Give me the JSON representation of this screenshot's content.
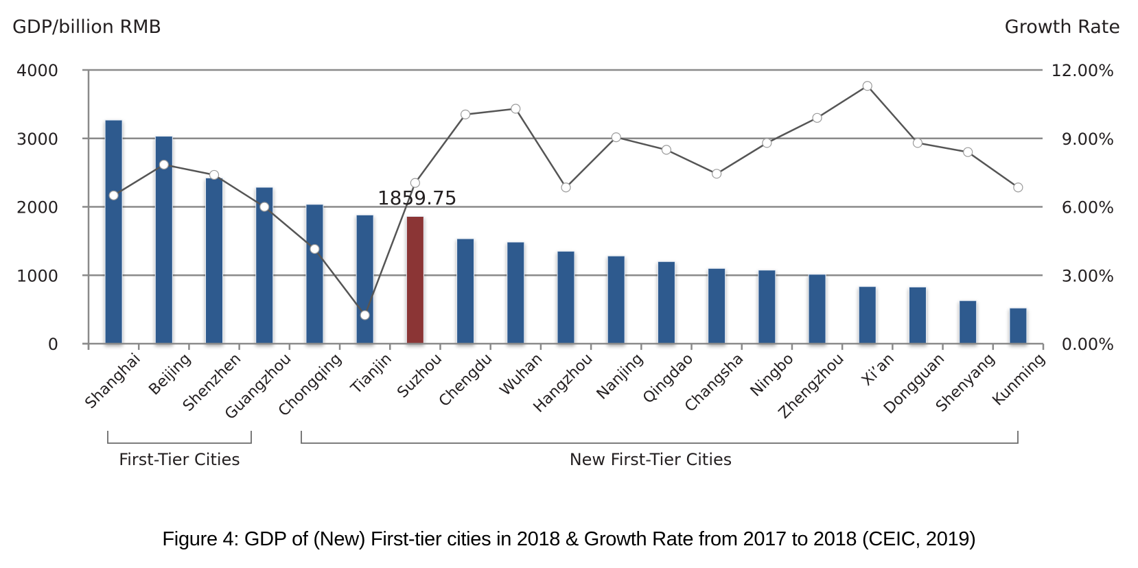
{
  "chart_data": {
    "type": "bar+line",
    "title": "",
    "y_left_label": "GDP/billion RMB",
    "y_right_label": "Growth Rate",
    "y_left_range": [
      0,
      4000
    ],
    "y_left_ticks": [
      "0",
      "1000",
      "2000",
      "3000",
      "4000"
    ],
    "y_left_tick_values": [
      0,
      1000,
      2000,
      3000,
      4000
    ],
    "y_right_range": [
      0,
      12
    ],
    "y_right_ticks": [
      "0.00%",
      "3.00%",
      "6.00%",
      "9.00%",
      "12.00%"
    ],
    "y_right_tick_values": [
      0,
      3,
      6,
      9,
      12
    ],
    "grid": true,
    "categories": [
      "Shanghai",
      "Beijing",
      "Shenzhen",
      "Guangzhou",
      "Chongqing",
      "Tianjin",
      "Suzhou",
      "Chengdu",
      "Wuhan",
      "Hangzhou",
      "Nanjing",
      "Qingdao",
      "Changsha",
      "Ningbo",
      "Zhengzhou",
      "Xi’an",
      "Dongguan",
      "Shenyang",
      "Kunming"
    ],
    "series": [
      {
        "name": "GDP (billion RMB)",
        "type": "bar",
        "axis": "left",
        "values": [
          3268,
          3032,
          2422,
          2286,
          2036,
          1881,
          1859.75,
          1534,
          1485,
          1351,
          1282,
          1200,
          1100,
          1075,
          1014,
          835,
          828,
          629,
          521
        ],
        "color": "#2d5a8e",
        "highlight": {
          "index": 6,
          "color": "#8b3636"
        }
      },
      {
        "name": "Growth Rate (%)",
        "type": "line",
        "axis": "right",
        "values": [
          6.5,
          7.85,
          7.4,
          6.0,
          4.15,
          1.25,
          7.05,
          10.05,
          10.3,
          6.85,
          9.05,
          8.5,
          7.45,
          8.8,
          9.9,
          11.3,
          8.8,
          8.4,
          6.85
        ],
        "color": "#555555",
        "marker": "circle"
      }
    ],
    "annotations": [
      {
        "text": "1859.75",
        "category": "Suzhou"
      }
    ],
    "groups": [
      {
        "label": "First-Tier Cities",
        "from": "Shanghai",
        "to": "Guangzhou"
      },
      {
        "label": "New First-Tier Cities",
        "from": "Chongqing",
        "to": "Kunming"
      }
    ],
    "legend": "none"
  },
  "caption": "Figure 4: GDP of (New) First-tier cities in 2018 & Growth Rate from 2017 to 2018 (CEIC, 2019)"
}
